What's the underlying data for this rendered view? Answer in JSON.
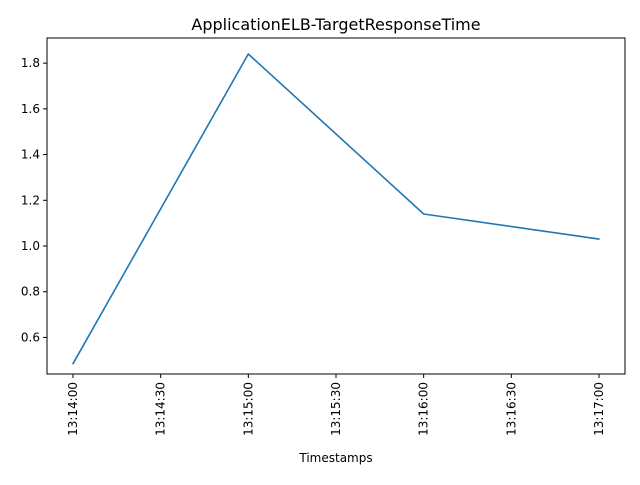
{
  "chart_data": {
    "type": "line",
    "title": "ApplicationELB-TargetResponseTime",
    "xlabel": "Timestamps",
    "ylabel": "",
    "x_ticks": [
      "13:14:00",
      "13:14:30",
      "13:15:00",
      "13:15:30",
      "13:16:00",
      "13:16:30",
      "13:17:00"
    ],
    "y_ticks": [
      "0.6",
      "0.8",
      "1.0",
      "1.2",
      "1.4",
      "1.6",
      "1.8"
    ],
    "xlim": [
      "13:14:00",
      "13:17:00"
    ],
    "ylim": [
      0.44,
      1.91
    ],
    "grid": false,
    "series": [
      {
        "x": [
          "13:14:00",
          "13:15:00",
          "13:16:00",
          "13:17:00"
        ],
        "values": [
          0.485,
          1.84,
          1.14,
          1.03
        ],
        "color": "#1f77b4"
      }
    ]
  }
}
